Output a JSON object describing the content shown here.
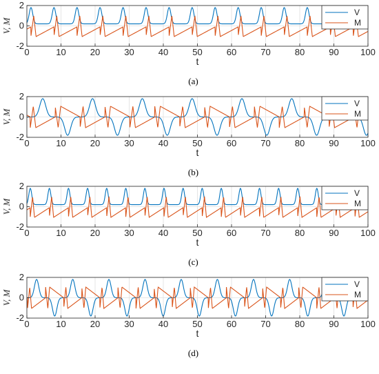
{
  "colors": {
    "V": "#0072BD",
    "M": "#D95319",
    "axis": "#262626",
    "grid": "#DFDFDF"
  },
  "chart_data": [
    {
      "type": "line",
      "caption": "(a)",
      "xlabel": "t",
      "ylabel": "V, M",
      "xlim": [
        0,
        100
      ],
      "ylim": [
        -2,
        2
      ],
      "xticks": [
        0,
        10,
        20,
        30,
        40,
        50,
        60,
        70,
        80,
        90,
        100
      ],
      "yticks": [
        -2,
        0,
        2
      ],
      "grid": true,
      "legend_position": "top-right",
      "period": 6.75,
      "phase": 1.2,
      "series": [
        {
          "name": "V",
          "minimum": 0.2,
          "maximum": 1.8,
          "pattern": "V>0"
        },
        {
          "name": "M",
          "minimum": -1.05,
          "maximum": 1.0,
          "pattern": "M"
        }
      ]
    },
    {
      "type": "line",
      "caption": "(b)",
      "xlabel": "t",
      "ylabel": "V, M",
      "xlim": [
        0,
        100
      ],
      "ylim": [
        -2,
        2
      ],
      "xticks": [
        0,
        10,
        20,
        30,
        40,
        50,
        60,
        70,
        80,
        90,
        100
      ],
      "yticks": [
        -2,
        0,
        2
      ],
      "grid": true,
      "legend_position": "top-right",
      "period": 14.6,
      "phase": 1.0,
      "series": [
        {
          "name": "V",
          "minimum": -1.8,
          "maximum": 1.8,
          "pattern": "V+-"
        },
        {
          "name": "M",
          "minimum": -1.1,
          "maximum": 1.1,
          "pattern": "M2"
        }
      ]
    },
    {
      "type": "line",
      "caption": "(c)",
      "xlabel": "t",
      "ylabel": "V, M",
      "xlim": [
        0,
        100
      ],
      "ylim": [
        -2,
        2
      ],
      "xticks": [
        0,
        10,
        20,
        30,
        40,
        50,
        60,
        70,
        80,
        90,
        100
      ],
      "yticks": [
        -2,
        0,
        2
      ],
      "grid": true,
      "legend_position": "top-right",
      "period": 5.6,
      "phase": 1.0,
      "series": [
        {
          "name": "V",
          "minimum": 0.2,
          "maximum": 1.8,
          "pattern": "V>0"
        },
        {
          "name": "M",
          "minimum": -1.05,
          "maximum": 1.0,
          "pattern": "M"
        }
      ]
    },
    {
      "type": "line",
      "caption": "(d)",
      "xlabel": "t",
      "ylabel": "V, M",
      "xlim": [
        0,
        100
      ],
      "ylim": [
        -2,
        2
      ],
      "xticks": [
        0,
        10,
        20,
        30,
        40,
        50,
        60,
        70,
        80,
        90,
        100
      ],
      "yticks": [
        -2,
        0,
        2
      ],
      "grid": true,
      "legend_position": "top-right",
      "period": 10.6,
      "phase": 0.2,
      "series": [
        {
          "name": "V",
          "minimum": -1.8,
          "maximum": 1.8,
          "pattern": "V+-"
        },
        {
          "name": "M",
          "minimum": -1.1,
          "maximum": 1.1,
          "pattern": "M2"
        }
      ]
    }
  ]
}
